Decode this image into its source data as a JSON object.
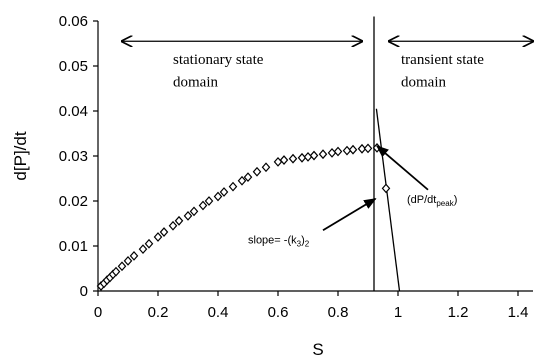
{
  "chart_data": {
    "type": "scatter",
    "title": "",
    "xlabel": "S",
    "ylabel": "d[P]/dt",
    "xlim": [
      0,
      1.45
    ],
    "ylim": [
      0,
      0.06
    ],
    "x_ticks": [
      0,
      0.2,
      0.4,
      0.6,
      0.8,
      1,
      1.2,
      1.4
    ],
    "x_tick_labels": [
      "0",
      "0.2",
      "0.4",
      "0.6",
      "0.8",
      "1",
      "1.2",
      "1.4"
    ],
    "y_ticks": [
      0,
      0.01,
      0.02,
      0.03,
      0.04,
      0.05,
      0.06
    ],
    "y_tick_labels": [
      "0",
      "0.01",
      "0.02",
      "0.03",
      "0.04",
      "0.05",
      "0.06"
    ],
    "grid": false,
    "marker": "diamond",
    "series": [
      {
        "x": [
          0.01,
          0.02,
          0.03,
          0.04,
          0.05,
          0.06,
          0.08,
          0.1,
          0.12,
          0.15,
          0.17,
          0.2,
          0.22,
          0.25,
          0.27,
          0.3,
          0.32,
          0.35,
          0.37,
          0.4,
          0.42,
          0.45,
          0.48,
          0.5,
          0.53,
          0.56,
          0.6,
          0.62,
          0.65,
          0.68,
          0.7,
          0.72,
          0.75,
          0.78,
          0.8,
          0.83,
          0.85,
          0.88,
          0.9,
          0.93,
          0.96
        ],
        "y": [
          0.0011,
          0.0017,
          0.0024,
          0.003,
          0.0037,
          0.0043,
          0.0055,
          0.0067,
          0.0078,
          0.0093,
          0.0105,
          0.012,
          0.0131,
          0.0145,
          0.0156,
          0.0167,
          0.0177,
          0.019,
          0.02,
          0.021,
          0.022,
          0.0232,
          0.0245,
          0.0253,
          0.0265,
          0.0275,
          0.0287,
          0.0291,
          0.0294,
          0.0296,
          0.0298,
          0.0301,
          0.0304,
          0.0307,
          0.031,
          0.0312,
          0.0314,
          0.0316,
          0.0317,
          0.0318,
          0.0228
        ]
      }
    ],
    "lines": [
      {
        "from": [
          0.92,
          0.061
        ],
        "to": [
          0.92,
          0.0
        ]
      },
      {
        "from": [
          0.928,
          0.0405
        ],
        "to": [
          1.005,
          0.0
        ]
      }
    ],
    "annotations": {
      "left_arrow": {
        "from": [
          0.08,
          0.0555
        ],
        "to": [
          0.88,
          0.0555
        ]
      },
      "right_arrow": {
        "from": [
          0.97,
          0.0555
        ],
        "to": [
          1.45,
          0.0555
        ]
      },
      "stationary_line1": {
        "text": "stationary state",
        "at": [
          0.25,
          0.0505
        ]
      },
      "stationary_line2": {
        "text": "domain",
        "at": [
          0.25,
          0.0455
        ]
      },
      "transient_line1": {
        "text": "transient state",
        "at": [
          1.01,
          0.0505
        ]
      },
      "transient_line2": {
        "text": "domain",
        "at": [
          1.01,
          0.0455
        ]
      },
      "peak": {
        "text_main": "(dP/dt",
        "text_sub": "peak",
        "text_end": ")",
        "at": [
          1.03,
          0.0196
        ],
        "arrow_from": [
          1.1,
          0.0225
        ],
        "arrow_to": [
          0.93,
          0.0322
        ]
      },
      "slope": {
        "text_main": "slope= -(k",
        "text_sub": "3",
        "text_end": ")",
        "text_sub2": "2",
        "at": [
          0.5,
          0.0106
        ],
        "arrow_from": [
          0.75,
          0.0135
        ],
        "arrow_to": [
          0.925,
          0.0205
        ]
      }
    }
  }
}
